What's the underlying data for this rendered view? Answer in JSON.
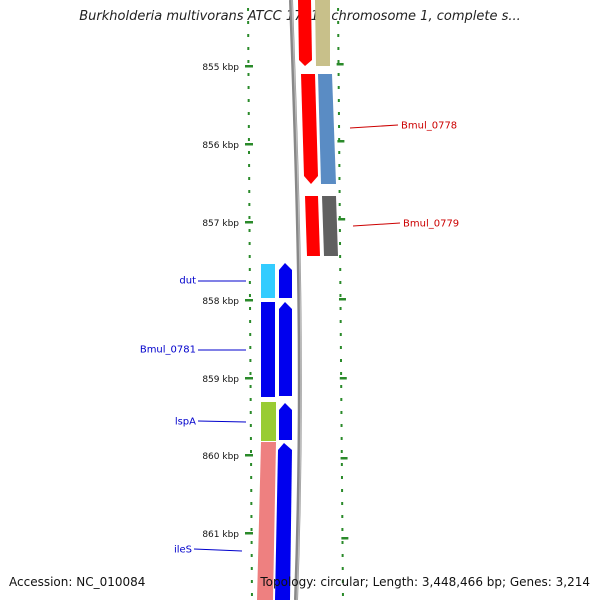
{
  "title": "Burkholderia multivorans ATCC 17616 chromosome 1, complete s...",
  "footer": {
    "accession": "Accession: NC_010084",
    "topology": "Topology: circular; Length: 3,448,466 bp; Genes: 3,214"
  },
  "ruler_labels": [
    "855 kbp",
    "856 kbp",
    "857 kbp",
    "858 kbp",
    "859 kbp",
    "860 kbp",
    "861 kbp"
  ],
  "gene_labels": [
    {
      "text": "Bmul_0778",
      "color": "#cc0000",
      "side": "right"
    },
    {
      "text": "Bmul_0779",
      "color": "#cc0000",
      "side": "right"
    },
    {
      "text": "dut",
      "color": "#0000cc",
      "side": "left"
    },
    {
      "text": "Bmul_0781",
      "color": "#0000cc",
      "side": "left"
    },
    {
      "text": "lspA",
      "color": "#0000cc",
      "side": "left"
    },
    {
      "text": "ileS",
      "color": "#0000cc",
      "side": "left"
    }
  ],
  "colors": {
    "backbone": "#888888",
    "ticks": "#2a8a2a",
    "red_feature": "#ff0000",
    "blue_feature": "#0000ee",
    "khaki_feature": "#c8c08a",
    "steelblue_feature": "#5a8cc4",
    "gray_feature": "#606060",
    "cyan_feature": "#33ccff",
    "green_feature": "#99cc33",
    "pink_feature": "#ee8080"
  }
}
